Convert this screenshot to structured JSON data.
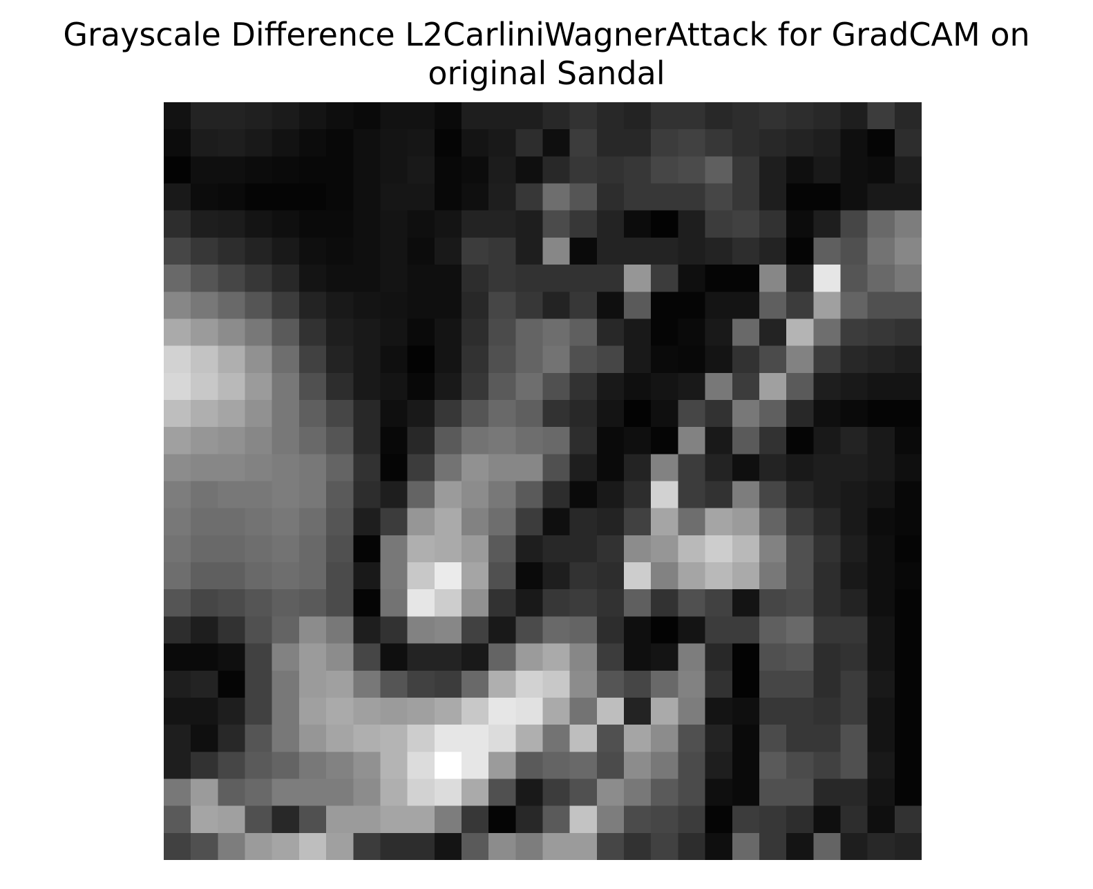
{
  "chart_data": {
    "type": "heatmap",
    "title_lines": [
      "Grayscale Difference L2CarliniWagnerAttack for GradCAM on",
      "original Sandal"
    ],
    "colormap": "gray",
    "axes": "off",
    "grid": false,
    "rows": 28,
    "cols": 28,
    "value_range": [
      0,
      255
    ],
    "values": [
      [
        18,
        35,
        35,
        32,
        27,
        20,
        14,
        10,
        18,
        18,
        10,
        30,
        30,
        30,
        40,
        50,
        40,
        35,
        50,
        50,
        40,
        45,
        50,
        45,
        40,
        30,
        60,
        40
      ],
      [
        12,
        28,
        30,
        25,
        18,
        12,
        8,
        15,
        20,
        22,
        5,
        20,
        25,
        45,
        15,
        60,
        40,
        40,
        60,
        65,
        55,
        45,
        40,
        35,
        30,
        15,
        5,
        45
      ],
      [
        3,
        15,
        15,
        12,
        10,
        8,
        8,
        15,
        20,
        25,
        8,
        12,
        28,
        15,
        40,
        55,
        50,
        55,
        70,
        75,
        95,
        55,
        30,
        15,
        25,
        15,
        12,
        30
      ],
      [
        25,
        12,
        10,
        5,
        5,
        5,
        8,
        15,
        22,
        22,
        8,
        15,
        30,
        55,
        110,
        85,
        45,
        55,
        55,
        55,
        70,
        55,
        30,
        5,
        5,
        15,
        25,
        25
      ],
      [
        45,
        30,
        28,
        20,
        15,
        10,
        10,
        15,
        20,
        15,
        20,
        35,
        35,
        30,
        75,
        55,
        35,
        12,
        3,
        30,
        60,
        65,
        50,
        12,
        30,
        70,
        105,
        125
      ],
      [
        70,
        55,
        45,
        35,
        25,
        15,
        12,
        15,
        20,
        12,
        25,
        60,
        55,
        30,
        135,
        10,
        35,
        35,
        35,
        30,
        35,
        45,
        35,
        5,
        95,
        80,
        115,
        135
      ],
      [
        105,
        85,
        70,
        55,
        40,
        20,
        15,
        15,
        20,
        15,
        15,
        45,
        55,
        50,
        50,
        50,
        50,
        150,
        60,
        15,
        5,
        5,
        135,
        40,
        230,
        85,
        105,
        120
      ],
      [
        135,
        120,
        105,
        85,
        60,
        35,
        25,
        20,
        18,
        15,
        15,
        40,
        70,
        55,
        35,
        55,
        15,
        90,
        5,
        5,
        20,
        20,
        95,
        60,
        160,
        100,
        80,
        80
      ],
      [
        170,
        155,
        140,
        120,
        90,
        50,
        30,
        25,
        20,
        10,
        20,
        45,
        75,
        100,
        110,
        95,
        40,
        25,
        5,
        10,
        25,
        105,
        35,
        180,
        110,
        60,
        55,
        50
      ],
      [
        210,
        195,
        175,
        145,
        110,
        65,
        35,
        25,
        15,
        3,
        20,
        50,
        80,
        100,
        115,
        80,
        70,
        25,
        10,
        8,
        20,
        50,
        75,
        130,
        60,
        40,
        35,
        30
      ],
      [
        215,
        200,
        185,
        155,
        120,
        80,
        45,
        25,
        20,
        8,
        25,
        55,
        90,
        110,
        80,
        50,
        25,
        15,
        20,
        25,
        120,
        60,
        160,
        90,
        30,
        25,
        20,
        20
      ],
      [
        190,
        175,
        165,
        145,
        120,
        95,
        70,
        40,
        15,
        25,
        55,
        85,
        105,
        95,
        50,
        40,
        20,
        3,
        15,
        70,
        50,
        120,
        95,
        40,
        15,
        10,
        5,
        5
      ],
      [
        160,
        150,
        145,
        135,
        120,
        105,
        85,
        40,
        8,
        40,
        90,
        115,
        120,
        110,
        105,
        45,
        10,
        15,
        5,
        130,
        25,
        90,
        50,
        5,
        25,
        35,
        25,
        10
      ],
      [
        140,
        135,
        135,
        130,
        125,
        120,
        100,
        50,
        5,
        60,
        115,
        145,
        135,
        135,
        80,
        30,
        10,
        35,
        130,
        60,
        35,
        15,
        35,
        25,
        30,
        30,
        25,
        15
      ],
      [
        125,
        115,
        120,
        120,
        125,
        120,
        90,
        45,
        30,
        100,
        155,
        140,
        120,
        90,
        45,
        10,
        25,
        45,
        210,
        60,
        50,
        125,
        70,
        40,
        30,
        25,
        20,
        8
      ],
      [
        120,
        110,
        110,
        115,
        120,
        110,
        85,
        30,
        60,
        150,
        170,
        130,
        110,
        60,
        15,
        40,
        35,
        65,
        165,
        110,
        165,
        155,
        100,
        60,
        40,
        25,
        12,
        8
      ],
      [
        115,
        105,
        105,
        110,
        115,
        105,
        80,
        5,
        120,
        175,
        170,
        155,
        90,
        30,
        40,
        40,
        50,
        140,
        150,
        185,
        205,
        185,
        130,
        80,
        50,
        30,
        15,
        5
      ],
      [
        110,
        95,
        95,
        105,
        110,
        105,
        75,
        25,
        120,
        200,
        235,
        165,
        80,
        10,
        30,
        50,
        45,
        205,
        130,
        165,
        185,
        170,
        120,
        80,
        45,
        25,
        15,
        8
      ],
      [
        85,
        70,
        75,
        85,
        95,
        90,
        75,
        5,
        115,
        230,
        205,
        145,
        50,
        25,
        55,
        60,
        50,
        95,
        50,
        80,
        65,
        20,
        70,
        75,
        45,
        35,
        15,
        5
      ],
      [
        45,
        30,
        50,
        80,
        100,
        140,
        120,
        30,
        50,
        130,
        135,
        65,
        25,
        75,
        105,
        100,
        45,
        15,
        3,
        20,
        60,
        60,
        95,
        105,
        55,
        55,
        20,
        5
      ],
      [
        10,
        10,
        15,
        65,
        130,
        155,
        140,
        70,
        15,
        35,
        35,
        25,
        100,
        155,
        170,
        135,
        60,
        15,
        20,
        125,
        40,
        3,
        80,
        85,
        45,
        50,
        20,
        5
      ],
      [
        30,
        35,
        5,
        65,
        120,
        155,
        160,
        120,
        85,
        65,
        60,
        105,
        175,
        210,
        200,
        140,
        85,
        70,
        105,
        130,
        50,
        3,
        70,
        70,
        45,
        60,
        25,
        5
      ],
      [
        20,
        20,
        30,
        65,
        120,
        160,
        170,
        160,
        155,
        160,
        170,
        200,
        230,
        225,
        170,
        115,
        190,
        35,
        170,
        125,
        20,
        15,
        55,
        55,
        50,
        60,
        20,
        5
      ],
      [
        30,
        15,
        40,
        85,
        120,
        150,
        165,
        175,
        180,
        205,
        230,
        230,
        220,
        175,
        115,
        190,
        80,
        165,
        140,
        80,
        35,
        10,
        75,
        55,
        55,
        80,
        20,
        5
      ],
      [
        30,
        50,
        70,
        90,
        100,
        120,
        130,
        145,
        180,
        220,
        255,
        230,
        155,
        90,
        100,
        105,
        75,
        140,
        120,
        75,
        30,
        10,
        90,
        75,
        65,
        80,
        25,
        5
      ],
      [
        120,
        155,
        95,
        105,
        125,
        125,
        125,
        140,
        175,
        210,
        220,
        170,
        80,
        25,
        60,
        80,
        140,
        120,
        90,
        75,
        15,
        10,
        80,
        80,
        40,
        40,
        20,
        5
      ],
      [
        90,
        165,
        160,
        80,
        40,
        80,
        155,
        155,
        165,
        165,
        125,
        55,
        5,
        40,
        90,
        195,
        125,
        75,
        70,
        60,
        5,
        60,
        55,
        45,
        15,
        45,
        15,
        50
      ],
      [
        65,
        80,
        125,
        155,
        165,
        190,
        160,
        60,
        45,
        45,
        20,
        90,
        140,
        125,
        155,
        155,
        70,
        50,
        65,
        45,
        15,
        105,
        55,
        20,
        100,
        30,
        40,
        35
      ]
    ]
  }
}
